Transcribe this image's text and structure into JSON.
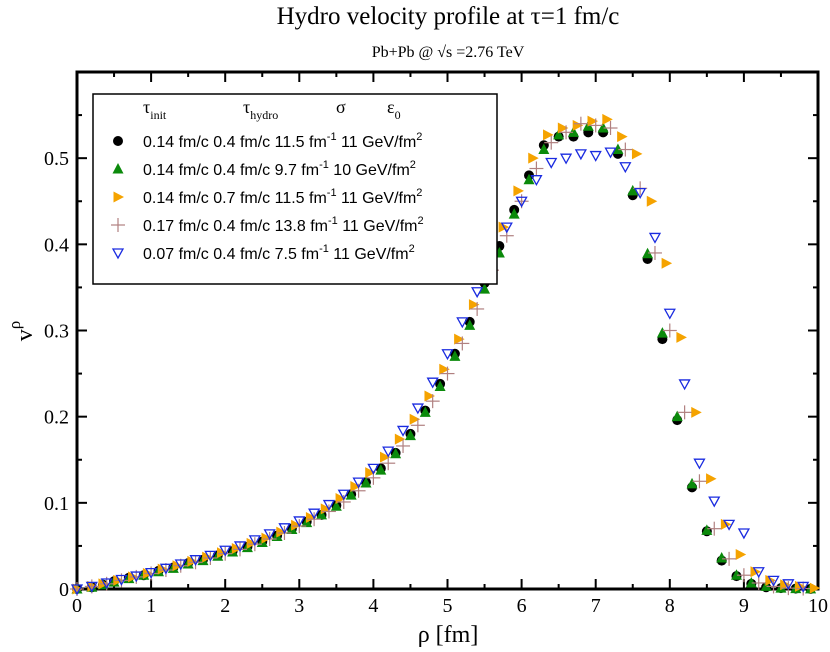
{
  "chart_data": {
    "type": "scatter",
    "title": "Hydro velocity profile at τ=1 fm/c",
    "subtitle": "Pb+Pb @ √s =2.76 TeV",
    "xlabel": "ρ [fm]",
    "ylabel_base": "v",
    "ylabel_sup": "ρ",
    "xlim": [
      0,
      10
    ],
    "ylim": [
      0,
      0.6
    ],
    "xticks": [
      "0",
      "1",
      "2",
      "3",
      "4",
      "5",
      "6",
      "7",
      "8",
      "9",
      "10"
    ],
    "yticks": [
      "0",
      "0.1",
      "0.2",
      "0.3",
      "0.4",
      "0.5"
    ],
    "legend": {
      "position": "top-left",
      "headers": [
        {
          "base": "τ",
          "sub": "init"
        },
        {
          "base": "τ",
          "sub": "hydro"
        },
        {
          "base": "σ",
          "sub": ""
        },
        {
          "base": "ε",
          "sub": "0"
        }
      ]
    },
    "series": [
      {
        "name": "0.14 fm/c 0.4 fm/c 11.5 fm-1 11 GeV/fm2",
        "label": {
          "tau_init": "0.14 fm/c",
          "tau_hydro": "0.4 fm/c",
          "sigma": "11.5 fm",
          "sigma_exp": "-1",
          "eps0": "11 GeV/fm",
          "eps0_exp": "2"
        },
        "marker": "circle",
        "color": "#000000",
        "x": [
          0.0,
          0.2,
          0.35,
          0.5,
          0.7,
          0.9,
          1.1,
          1.3,
          1.5,
          1.7,
          1.9,
          2.1,
          2.3,
          2.5,
          2.7,
          2.9,
          3.1,
          3.3,
          3.5,
          3.7,
          3.9,
          4.1,
          4.3,
          4.5,
          4.7,
          4.9,
          5.1,
          5.3,
          5.5,
          5.7,
          5.9,
          6.1,
          6.3,
          6.5,
          6.7,
          6.9,
          7.1,
          7.3,
          7.5,
          7.7,
          7.9,
          8.1,
          8.3,
          8.5,
          8.7,
          8.9,
          9.1,
          9.3,
          9.5,
          9.7,
          9.9
        ],
        "y": [
          0.0,
          0.002,
          0.005,
          0.009,
          0.013,
          0.016,
          0.021,
          0.025,
          0.03,
          0.034,
          0.039,
          0.044,
          0.049,
          0.055,
          0.062,
          0.07,
          0.078,
          0.086,
          0.097,
          0.11,
          0.124,
          0.14,
          0.158,
          0.18,
          0.207,
          0.238,
          0.273,
          0.31,
          0.355,
          0.398,
          0.44,
          0.48,
          0.515,
          0.525,
          0.525,
          0.53,
          0.53,
          0.505,
          0.457,
          0.383,
          0.29,
          0.196,
          0.118,
          0.067,
          0.033,
          0.015,
          0.006,
          0.002,
          0.001,
          0.0005,
          0.0002
        ]
      },
      {
        "name": "0.14 fm/c 0.4 fm/c 9.7 fm-1 10 GeV/fm2",
        "label": {
          "tau_init": "0.14 fm/c",
          "tau_hydro": "0.4 fm/c",
          "sigma": "9.7 fm",
          "sigma_exp": "-1",
          "eps0": "10 GeV/fm",
          "eps0_exp": "2"
        },
        "marker": "triangle-up",
        "color": "#0b8a0b",
        "x": [
          0.0,
          0.2,
          0.35,
          0.5,
          0.7,
          0.9,
          1.1,
          1.3,
          1.5,
          1.7,
          1.9,
          2.1,
          2.3,
          2.5,
          2.7,
          2.9,
          3.1,
          3.3,
          3.5,
          3.7,
          3.9,
          4.1,
          4.3,
          4.5,
          4.7,
          4.9,
          5.1,
          5.3,
          5.5,
          5.7,
          5.9,
          6.1,
          6.3,
          6.5,
          6.7,
          6.9,
          7.1,
          7.3,
          7.5,
          7.7,
          7.9,
          8.1,
          8.3,
          8.5,
          8.7,
          8.9,
          9.1,
          9.3,
          9.5,
          9.7,
          9.9
        ],
        "y": [
          0.0,
          0.002,
          0.005,
          0.008,
          0.012,
          0.016,
          0.02,
          0.024,
          0.029,
          0.033,
          0.038,
          0.043,
          0.048,
          0.054,
          0.061,
          0.069,
          0.077,
          0.086,
          0.096,
          0.109,
          0.123,
          0.138,
          0.157,
          0.178,
          0.205,
          0.235,
          0.27,
          0.306,
          0.348,
          0.39,
          0.435,
          0.475,
          0.51,
          0.527,
          0.53,
          0.537,
          0.535,
          0.51,
          0.462,
          0.389,
          0.297,
          0.2,
          0.122,
          0.068,
          0.036,
          0.016,
          0.007,
          0.003,
          0.001,
          0.0005,
          0.0002
        ]
      },
      {
        "name": "0.14 fm/c 0.7 fm/c 11.5 fm-1 11 GeV/fm2",
        "label": {
          "tau_init": "0.14 fm/c",
          "tau_hydro": "0.7 fm/c",
          "sigma": "11.5 fm",
          "sigma_exp": "-1",
          "eps0": "11 GeV/fm",
          "eps0_exp": "2"
        },
        "marker": "triangle-right",
        "color": "#f5a300",
        "x": [
          0.0,
          0.2,
          0.35,
          0.55,
          0.75,
          0.95,
          1.15,
          1.35,
          1.55,
          1.75,
          1.95,
          2.15,
          2.35,
          2.55,
          2.75,
          2.95,
          3.15,
          3.35,
          3.55,
          3.75,
          3.95,
          4.15,
          4.35,
          4.55,
          4.75,
          4.95,
          5.15,
          5.35,
          5.55,
          5.75,
          5.95,
          6.15,
          6.35,
          6.55,
          6.75,
          6.95,
          7.15,
          7.35,
          7.55,
          7.75,
          7.95,
          8.15,
          8.35,
          8.55,
          8.75,
          8.95,
          9.15,
          9.35,
          9.55,
          9.75,
          9.95
        ],
        "y": [
          0.0,
          0.003,
          0.006,
          0.01,
          0.014,
          0.018,
          0.023,
          0.027,
          0.032,
          0.037,
          0.042,
          0.047,
          0.053,
          0.059,
          0.066,
          0.074,
          0.083,
          0.093,
          0.105,
          0.119,
          0.135,
          0.153,
          0.174,
          0.197,
          0.224,
          0.255,
          0.29,
          0.33,
          0.372,
          0.42,
          0.462,
          0.5,
          0.527,
          0.535,
          0.538,
          0.543,
          0.545,
          0.525,
          0.505,
          0.45,
          0.378,
          0.292,
          0.205,
          0.128,
          0.075,
          0.04,
          0.02,
          0.01,
          0.005,
          0.003,
          0.001
        ]
      },
      {
        "name": "0.17 fm/c 0.4 fm/c 13.8 fm-1 11 GeV/fm2",
        "label": {
          "tau_init": "0.17 fm/c",
          "tau_hydro": "0.4 fm/c",
          "sigma": "13.8 fm",
          "sigma_exp": "-1",
          "eps0": "11 GeV/fm",
          "eps0_exp": "2"
        },
        "marker": "plus",
        "color": "#b08080",
        "x": [
          0.0,
          0.2,
          0.4,
          0.6,
          0.8,
          1.0,
          1.2,
          1.4,
          1.6,
          1.8,
          2.0,
          2.2,
          2.4,
          2.6,
          2.8,
          3.0,
          3.2,
          3.4,
          3.6,
          3.8,
          4.0,
          4.2,
          4.4,
          4.6,
          4.8,
          5.0,
          5.2,
          5.4,
          5.6,
          5.8,
          6.0,
          6.2,
          6.4,
          6.6,
          6.8,
          7.0,
          7.2,
          7.4,
          7.6,
          7.8,
          8.0,
          8.2,
          8.4,
          8.6,
          8.8,
          9.0,
          9.2,
          9.4,
          9.6,
          9.8
        ],
        "y": [
          0.0,
          0.003,
          0.006,
          0.01,
          0.014,
          0.018,
          0.022,
          0.027,
          0.031,
          0.036,
          0.041,
          0.046,
          0.052,
          0.058,
          0.065,
          0.073,
          0.081,
          0.09,
          0.101,
          0.114,
          0.129,
          0.146,
          0.166,
          0.19,
          0.218,
          0.25,
          0.285,
          0.325,
          0.37,
          0.41,
          0.45,
          0.488,
          0.518,
          0.53,
          0.54,
          0.538,
          0.535,
          0.51,
          0.465,
          0.39,
          0.3,
          0.205,
          0.125,
          0.07,
          0.035,
          0.016,
          0.007,
          0.003,
          0.001,
          0.0005
        ]
      },
      {
        "name": "0.07 fm/c 0.4 fm/c 7.5 fm-1 11 GeV/fm2",
        "label": {
          "tau_init": "0.07 fm/c",
          "tau_hydro": "0.4 fm/c",
          "sigma": "7.5 fm",
          "sigma_exp": "-1",
          "eps0": "11 GeV/fm",
          "eps0_exp": "2"
        },
        "marker": "triangle-down-open",
        "color": "#1a2be0",
        "x": [
          0.0,
          0.2,
          0.4,
          0.6,
          0.8,
          1.0,
          1.2,
          1.4,
          1.6,
          1.8,
          2.0,
          2.2,
          2.4,
          2.6,
          2.8,
          3.0,
          3.2,
          3.4,
          3.6,
          3.8,
          4.0,
          4.2,
          4.4,
          4.6,
          4.8,
          5.0,
          5.2,
          5.4,
          5.6,
          5.8,
          6.0,
          6.2,
          6.4,
          6.6,
          6.8,
          7.0,
          7.2,
          7.4,
          7.6,
          7.8,
          8.0,
          8.2,
          8.4,
          8.6,
          8.8,
          9.0,
          9.2,
          9.4,
          9.6,
          9.8
        ],
        "y": [
          0.0,
          0.003,
          0.007,
          0.011,
          0.015,
          0.019,
          0.024,
          0.029,
          0.034,
          0.039,
          0.045,
          0.05,
          0.057,
          0.064,
          0.071,
          0.079,
          0.088,
          0.098,
          0.11,
          0.124,
          0.14,
          0.16,
          0.184,
          0.21,
          0.24,
          0.273,
          0.31,
          0.345,
          0.385,
          0.42,
          0.45,
          0.475,
          0.495,
          0.5,
          0.505,
          0.503,
          0.507,
          0.49,
          0.46,
          0.408,
          0.32,
          0.238,
          0.146,
          0.102,
          0.075,
          0.065,
          0.02,
          0.01,
          0.006,
          0.003
        ]
      }
    ]
  }
}
